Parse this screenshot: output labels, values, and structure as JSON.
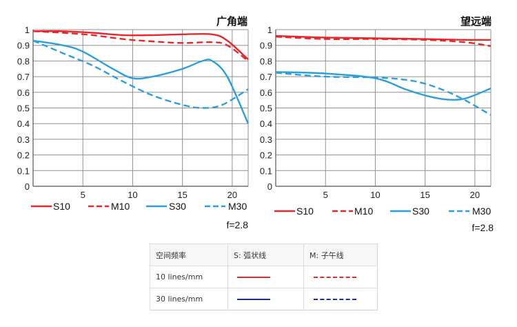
{
  "chart_data": [
    {
      "type": "line",
      "title": "广角端",
      "x_ticks": [
        5,
        10,
        15,
        20
      ],
      "y_ticks": [
        0,
        0.1,
        0.2,
        0.3,
        0.4,
        0.5,
        0.6,
        0.7,
        0.8,
        0.9,
        1
      ],
      "xlim": [
        0,
        21.6
      ],
      "ylim": [
        0,
        1
      ],
      "grid": true,
      "series": [
        {
          "name": "S10",
          "color": "#e8262b",
          "dash": false,
          "x": [
            0,
            3,
            6,
            9,
            12,
            15,
            18,
            19.5,
            21.6
          ],
          "y": [
            0.99,
            0.99,
            0.98,
            0.965,
            0.965,
            0.97,
            0.97,
            0.93,
            0.81
          ]
        },
        {
          "name": "M10",
          "color": "#e8262b",
          "dash": true,
          "x": [
            0,
            3,
            6,
            9,
            12,
            15,
            18,
            19.5,
            21.6
          ],
          "y": [
            0.99,
            0.98,
            0.965,
            0.94,
            0.925,
            0.915,
            0.92,
            0.9,
            0.8
          ]
        },
        {
          "name": "S30",
          "color": "#2a9fdb",
          "dash": false,
          "x": [
            0,
            3,
            5,
            8,
            10,
            12,
            15,
            17,
            18,
            19.5,
            21.6
          ],
          "y": [
            0.93,
            0.9,
            0.86,
            0.75,
            0.69,
            0.7,
            0.75,
            0.8,
            0.8,
            0.7,
            0.4
          ]
        },
        {
          "name": "M30",
          "color": "#2a9fdb",
          "dash": true,
          "x": [
            0,
            3,
            6,
            9,
            12,
            15,
            17,
            19,
            21.6
          ],
          "y": [
            0.93,
            0.85,
            0.77,
            0.67,
            0.58,
            0.52,
            0.5,
            0.52,
            0.62
          ]
        }
      ],
      "annotation": "f=2.8"
    },
    {
      "type": "line",
      "title": "望远端",
      "x_ticks": [
        5,
        10,
        15,
        20
      ],
      "y_ticks": [
        0,
        0.1,
        0.2,
        0.3,
        0.4,
        0.5,
        0.6,
        0.7,
        0.8,
        0.9,
        1
      ],
      "xlim": [
        0,
        21.6
      ],
      "ylim": [
        0,
        1
      ],
      "grid": true,
      "series": [
        {
          "name": "S10",
          "color": "#e8262b",
          "dash": false,
          "x": [
            0,
            5,
            10,
            15,
            19,
            21.6
          ],
          "y": [
            0.96,
            0.95,
            0.945,
            0.94,
            0.935,
            0.935
          ]
        },
        {
          "name": "M10",
          "color": "#e8262b",
          "dash": true,
          "x": [
            0,
            5,
            10,
            15,
            19,
            21.6
          ],
          "y": [
            0.955,
            0.94,
            0.94,
            0.935,
            0.92,
            0.895
          ]
        },
        {
          "name": "S30",
          "color": "#2a9fdb",
          "dash": false,
          "x": [
            0,
            5,
            10,
            13,
            15,
            17,
            19,
            21.6
          ],
          "y": [
            0.73,
            0.72,
            0.69,
            0.62,
            0.58,
            0.555,
            0.56,
            0.625
          ]
        },
        {
          "name": "M30",
          "color": "#2a9fdb",
          "dash": true,
          "x": [
            0,
            5,
            10,
            13,
            15,
            17,
            19,
            21.6
          ],
          "y": [
            0.725,
            0.7,
            0.695,
            0.68,
            0.655,
            0.61,
            0.55,
            0.455
          ]
        }
      ],
      "annotation": "f=2.8"
    }
  ],
  "legend_table": {
    "header": [
      "空间频率",
      "S: 弧状线",
      "M: 子午线"
    ],
    "rows": [
      {
        "label": "10 lines/mm",
        "color": "#e8262b"
      },
      {
        "label": "30 lines/mm",
        "color": "#1d2aa8"
      }
    ]
  }
}
